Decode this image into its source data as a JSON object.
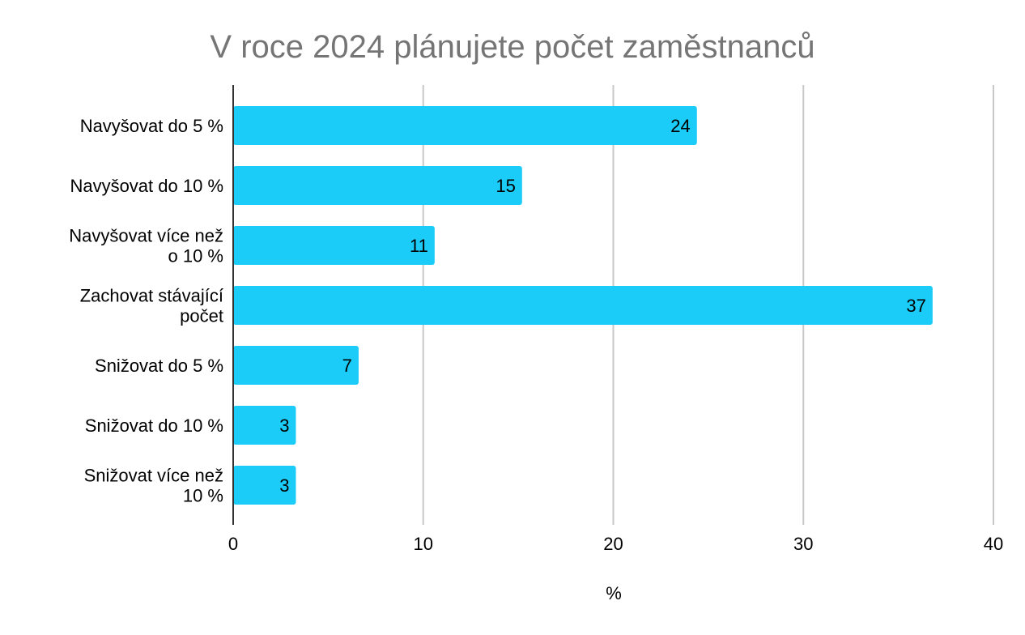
{
  "chart_data": {
    "type": "bar",
    "orientation": "horizontal",
    "title": "V roce 2024 plánujete počet zaměstnanců",
    "xlabel": "%",
    "ylabel": "",
    "xlim": [
      0,
      40
    ],
    "xticks": [
      0,
      10,
      20,
      30,
      40
    ],
    "grid": true,
    "legend": "none",
    "bar_color": "#1ACCF7",
    "categories": [
      [
        "Navyšovat do 5 %"
      ],
      [
        "Navyšovat do 10 %"
      ],
      [
        "Navyšovat více než",
        "o 10 %"
      ],
      [
        "Zachovat stávající",
        "počet"
      ],
      [
        "Snižovat do 5 %"
      ],
      [
        "Snižovat do 10 %"
      ],
      [
        "Snižovat více než",
        "10 %"
      ]
    ],
    "values": [
      24.4,
      15.2,
      10.6,
      36.8,
      6.6,
      3.3,
      3.3
    ],
    "data_labels": [
      "24",
      "15",
      "11",
      "37",
      "7",
      "3",
      "3"
    ]
  }
}
